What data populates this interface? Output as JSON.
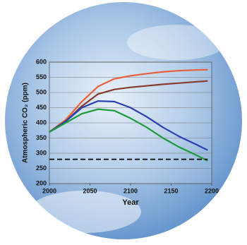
{
  "chart_data": {
    "type": "line",
    "x_label": "Year",
    "y_label": "Atmospheric CO₂ (ppm)",
    "x": [
      2000,
      2020,
      2040,
      2060,
      2080,
      2100,
      2120,
      2140,
      2160,
      2180,
      2195
    ],
    "series": [
      {
        "color": "#e8603c",
        "values": [
          370,
          410,
          470,
          520,
          545,
          555,
          562,
          568,
          572,
          574,
          575
        ]
      },
      {
        "color": "#8a3a2a",
        "values": [
          370,
          405,
          455,
          495,
          510,
          517,
          522,
          527,
          531,
          535,
          538
        ]
      },
      {
        "color": "#2a3fb0",
        "values": [
          370,
          405,
          450,
          472,
          470,
          450,
          420,
          385,
          355,
          330,
          310
        ]
      },
      {
        "color": "#1e9a3a",
        "values": [
          370,
          400,
          430,
          445,
          440,
          415,
          385,
          350,
          320,
          295,
          275
        ]
      },
      {
        "color": "#000000",
        "dash": true,
        "values": [
          280,
          280,
          280,
          280,
          280,
          280,
          280,
          280,
          280,
          280,
          280
        ]
      }
    ],
    "xlim": [
      2000,
      2200
    ],
    "xticks": [
      2000,
      2050,
      2100,
      2150,
      2200
    ],
    "ylim": [
      200,
      600
    ],
    "yticks": [
      200,
      250,
      300,
      350,
      400,
      450,
      500,
      550,
      600
    ],
    "grid": true
  }
}
